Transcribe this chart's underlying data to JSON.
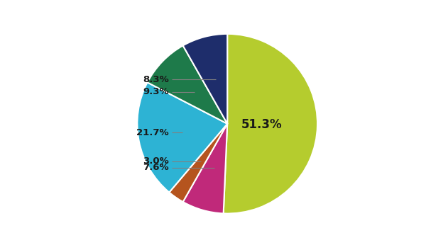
{
  "slices": [
    51.3,
    7.6,
    3.0,
    21.7,
    9.3,
    8.3
  ],
  "colors": [
    "#b5cc2e",
    "#c0297a",
    "#b5541e",
    "#2db3d4",
    "#1e7a4a",
    "#1e2d6b"
  ],
  "labels": [
    "51.3%",
    "7.6%",
    "3.0%",
    "21.7%",
    "9.3%",
    "8.3%"
  ],
  "startangle": 90,
  "bg_color": "#ffffff"
}
